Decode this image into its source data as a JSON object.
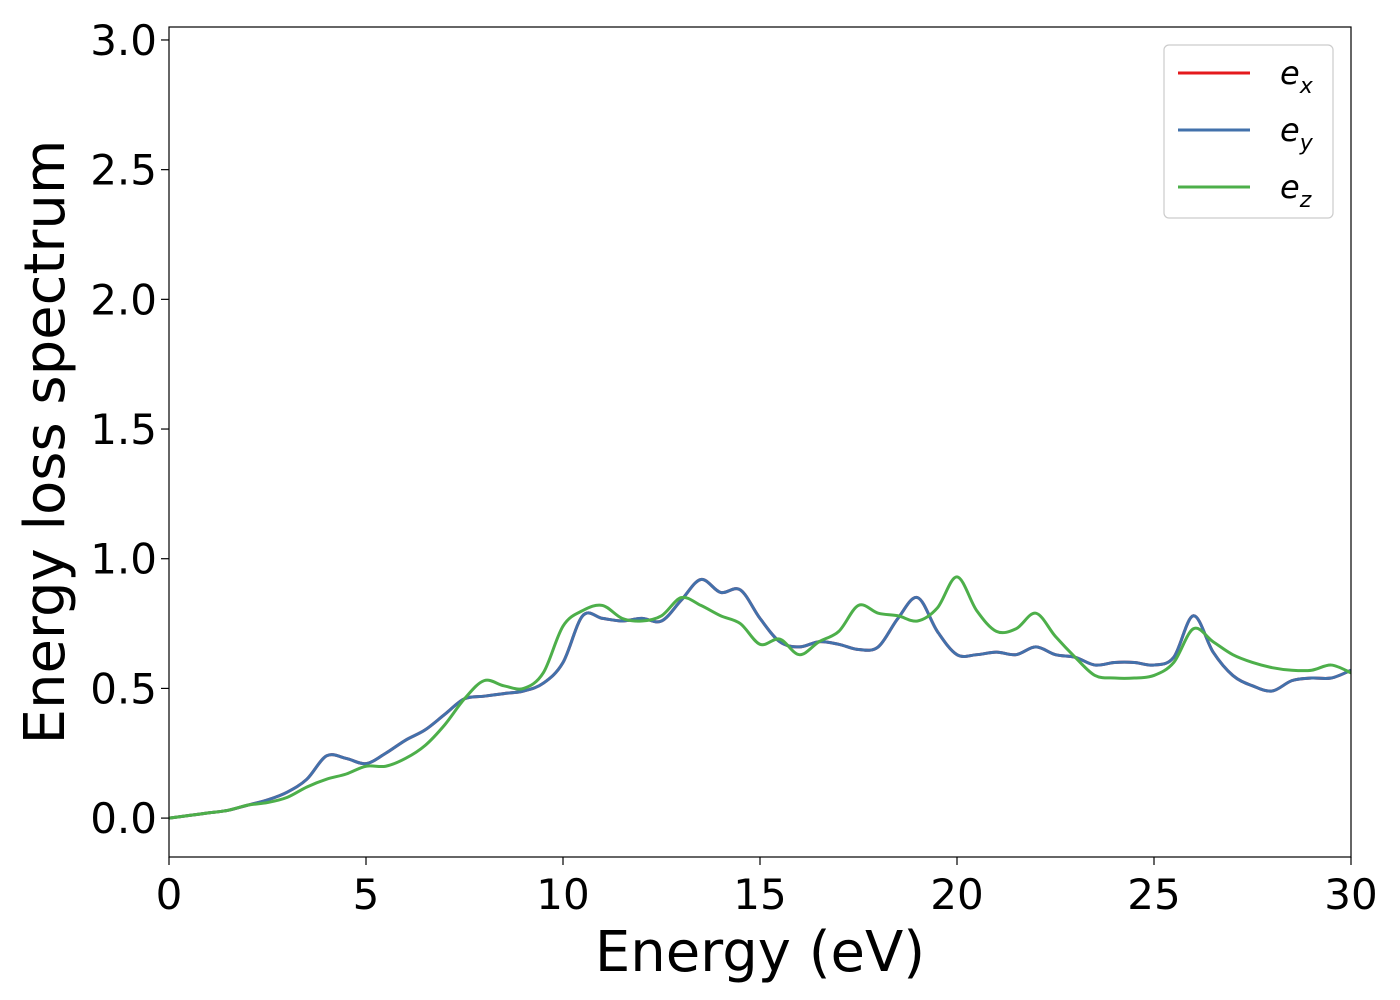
{
  "chart_data": {
    "type": "line",
    "xlabel": "Energy (eV)",
    "ylabel": "Energy loss spectrum",
    "xlim": [
      0,
      30
    ],
    "ylim": [
      -0.15,
      3.05
    ],
    "xticks": [
      0,
      5,
      10,
      15,
      20,
      25,
      30
    ],
    "xtick_labels": [
      "0",
      "5",
      "10",
      "15",
      "20",
      "25",
      "30"
    ],
    "yticks": [
      0.0,
      0.5,
      1.0,
      1.5,
      2.0,
      2.5,
      3.0
    ],
    "ytick_labels": [
      "0.0",
      "0.5",
      "1.0",
      "1.5",
      "2.0",
      "2.5",
      "3.0"
    ],
    "grid": false,
    "legend_position": "top-right",
    "series": [
      {
        "name": "e",
        "subscript": "x",
        "color": "#e41a1c",
        "x": [
          0,
          0.5,
          1,
          1.5,
          2,
          2.5,
          3,
          3.5,
          4,
          4.5,
          5,
          5.5,
          6,
          6.5,
          7,
          7.5,
          8,
          8.5,
          9,
          9.5,
          10,
          10.5,
          11,
          11.5,
          12,
          12.5,
          13,
          13.5,
          14,
          14.5,
          15,
          15.5,
          16,
          16.5,
          17,
          17.5,
          18,
          18.5,
          19,
          19.5,
          20,
          20.5,
          21,
          21.5,
          22,
          22.5,
          23,
          23.5,
          24,
          24.5,
          25,
          25.5,
          26,
          26.5,
          27,
          27.5,
          28,
          28.5,
          29,
          29.5,
          30
        ],
        "y": [
          0.0,
          0.01,
          0.02,
          0.03,
          0.05,
          0.07,
          0.1,
          0.15,
          0.24,
          0.23,
          0.21,
          0.25,
          0.3,
          0.34,
          0.4,
          0.46,
          0.47,
          0.48,
          0.49,
          0.52,
          0.6,
          0.78,
          0.77,
          0.76,
          0.77,
          0.76,
          0.84,
          0.92,
          0.87,
          0.88,
          0.77,
          0.68,
          0.66,
          0.68,
          0.67,
          0.65,
          0.66,
          0.77,
          0.85,
          0.72,
          0.63,
          0.63,
          0.64,
          0.63,
          0.66,
          0.63,
          0.62,
          0.59,
          0.6,
          0.6,
          0.59,
          0.62,
          0.78,
          0.64,
          0.55,
          0.51,
          0.49,
          0.53,
          0.54,
          0.54,
          0.57
        ]
      },
      {
        "name": "e",
        "subscript": "y",
        "color": "#4271ab",
        "x": [
          0,
          0.5,
          1,
          1.5,
          2,
          2.5,
          3,
          3.5,
          4,
          4.5,
          5,
          5.5,
          6,
          6.5,
          7,
          7.5,
          8,
          8.5,
          9,
          9.5,
          10,
          10.5,
          11,
          11.5,
          12,
          12.5,
          13,
          13.5,
          14,
          14.5,
          15,
          15.5,
          16,
          16.5,
          17,
          17.5,
          18,
          18.5,
          19,
          19.5,
          20,
          20.5,
          21,
          21.5,
          22,
          22.5,
          23,
          23.5,
          24,
          24.5,
          25,
          25.5,
          26,
          26.5,
          27,
          27.5,
          28,
          28.5,
          29,
          29.5,
          30
        ],
        "y": [
          0.0,
          0.01,
          0.02,
          0.03,
          0.05,
          0.07,
          0.1,
          0.15,
          0.24,
          0.23,
          0.21,
          0.25,
          0.3,
          0.34,
          0.4,
          0.46,
          0.47,
          0.48,
          0.49,
          0.52,
          0.6,
          0.78,
          0.77,
          0.76,
          0.77,
          0.76,
          0.84,
          0.92,
          0.87,
          0.88,
          0.77,
          0.68,
          0.66,
          0.68,
          0.67,
          0.65,
          0.66,
          0.77,
          0.85,
          0.72,
          0.63,
          0.63,
          0.64,
          0.63,
          0.66,
          0.63,
          0.62,
          0.59,
          0.6,
          0.6,
          0.59,
          0.62,
          0.78,
          0.64,
          0.55,
          0.51,
          0.49,
          0.53,
          0.54,
          0.54,
          0.57
        ]
      },
      {
        "name": "e",
        "subscript": "z",
        "color": "#4daf4a",
        "x": [
          0,
          0.5,
          1,
          1.5,
          2,
          2.5,
          3,
          3.5,
          4,
          4.5,
          5,
          5.5,
          6,
          6.5,
          7,
          7.5,
          8,
          8.5,
          9,
          9.5,
          10,
          10.5,
          11,
          11.5,
          12,
          12.5,
          13,
          13.5,
          14,
          14.5,
          15,
          15.5,
          16,
          16.5,
          17,
          17.5,
          18,
          18.5,
          19,
          19.5,
          20,
          20.5,
          21,
          21.5,
          22,
          22.5,
          23,
          23.5,
          24,
          24.5,
          25,
          25.5,
          26,
          26.5,
          27,
          27.5,
          28,
          28.5,
          29,
          29.5,
          30
        ],
        "y": [
          0.0,
          0.01,
          0.02,
          0.03,
          0.05,
          0.06,
          0.08,
          0.12,
          0.15,
          0.17,
          0.2,
          0.2,
          0.23,
          0.28,
          0.36,
          0.46,
          0.53,
          0.51,
          0.5,
          0.56,
          0.74,
          0.8,
          0.82,
          0.77,
          0.76,
          0.78,
          0.85,
          0.82,
          0.78,
          0.75,
          0.67,
          0.69,
          0.63,
          0.68,
          0.72,
          0.82,
          0.79,
          0.78,
          0.76,
          0.81,
          0.93,
          0.8,
          0.72,
          0.73,
          0.79,
          0.7,
          0.62,
          0.55,
          0.54,
          0.54,
          0.55,
          0.6,
          0.73,
          0.68,
          0.63,
          0.6,
          0.58,
          0.57,
          0.57,
          0.59,
          0.56
        ]
      }
    ]
  }
}
